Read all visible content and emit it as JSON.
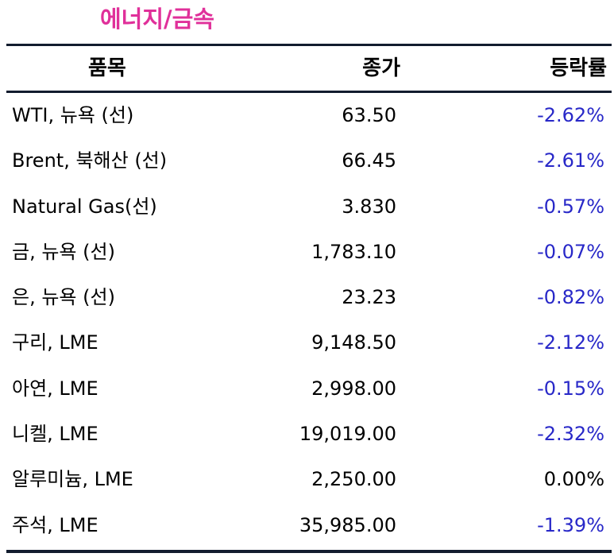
{
  "section": {
    "title": "에너지/금속"
  },
  "table": {
    "headers": {
      "item": "품목",
      "close": "종가",
      "change": "등락률"
    },
    "rows": [
      {
        "item": "WTI, 뉴욕 (선)",
        "close": "63.50",
        "change": "-2.62%"
      },
      {
        "item": "Brent, 북해산 (선)",
        "close": "66.45",
        "change": "-2.61%"
      },
      {
        "item": "Natural Gas(선)",
        "close": "3.830",
        "change": "-0.57%"
      },
      {
        "item": "금, 뉴욕  (선)",
        "close": "1,783.10",
        "change": "-0.07%"
      },
      {
        "item": "은, 뉴욕  (선)",
        "close": "23.23",
        "change": "-0.82%"
      },
      {
        "item": "구리, LME",
        "close": "9,148.50",
        "change": "-2.12%"
      },
      {
        "item": "아연, LME",
        "close": "2,998.00",
        "change": "-0.15%"
      },
      {
        "item": "니켈, LME",
        "close": "19,019.00",
        "change": "-2.32%"
      },
      {
        "item": "알루미늄, LME",
        "close": "2,250.00",
        "change": "0.00%"
      },
      {
        "item": "주석, LME",
        "close": "35,985.00",
        "change": "-1.39%"
      }
    ]
  },
  "colors": {
    "title": "#e0309a",
    "negative": "#2828c8",
    "rule": "#121c2e"
  }
}
